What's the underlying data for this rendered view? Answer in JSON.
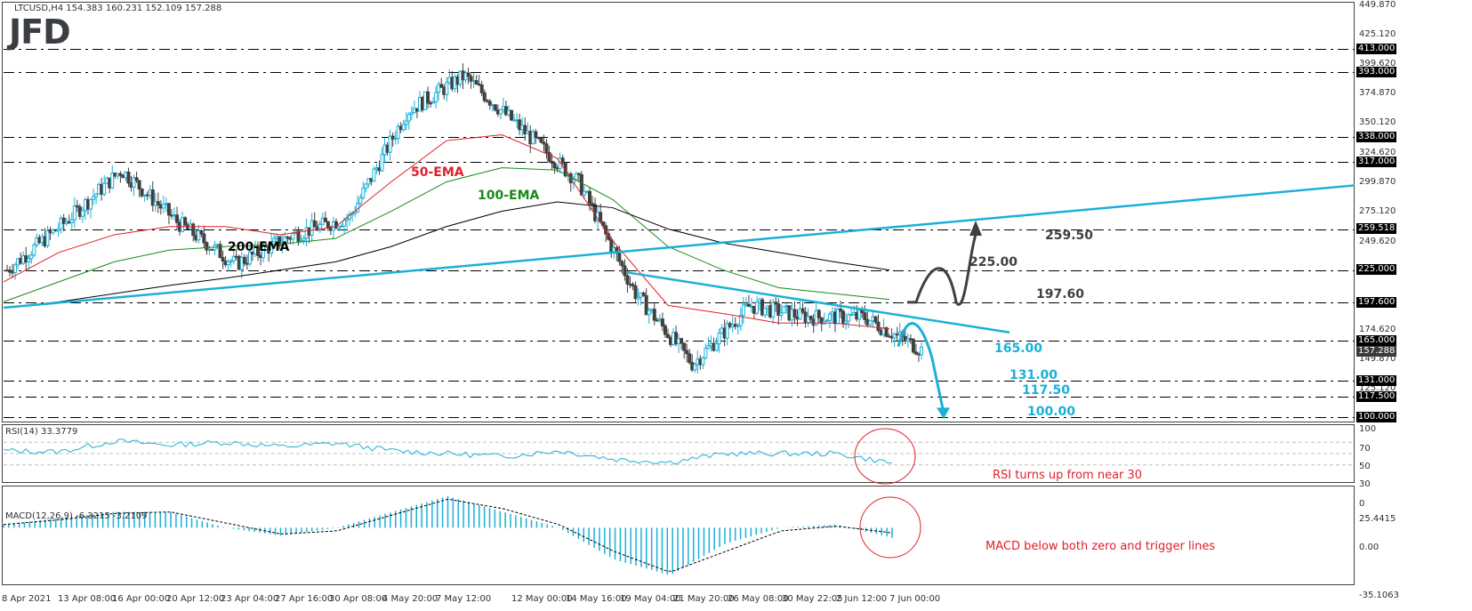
{
  "header": {
    "symbol_info": "LTCUSD,H4  154.383 160.231 152.109 157.288",
    "logo": "JFD"
  },
  "colors": {
    "bull": "#1ab0d8",
    "bear": "#404040",
    "ema50": "#e0202a",
    "ema100": "#1a8a1a",
    "ema200": "#000000",
    "trendline": "#1ab0d8",
    "bullish_path": "#404040",
    "bearish_path": "#1ab0d8",
    "note": "#e0202a"
  },
  "price_axis": {
    "ticks": [
      "449.870",
      "425.120",
      "399.620",
      "374.870",
      "350.120",
      "324.620",
      "299.870",
      "275.120",
      "249.620",
      "174.620",
      "149.870",
      "125.120"
    ],
    "level_tags": [
      "413.000",
      "393.000",
      "338.000",
      "317.000",
      "259.518",
      "225.000",
      "197.600",
      "165.000",
      "131.000",
      "117.500",
      "100.000"
    ],
    "current_price": "157.288"
  },
  "rsi": {
    "label": "RSI(14) 33.3779",
    "ticks": [
      "100",
      "70",
      "50",
      "30",
      "0"
    ],
    "note": "RSI turns up from near 30"
  },
  "macd": {
    "label": "MACD(12,26,9) -6.3215 -3.2109",
    "ticks": [
      "25.4415",
      "0.00",
      "-35.1063"
    ],
    "note": "MACD below both zero and trigger lines"
  },
  "time_axis": [
    "8 Apr 2021",
    "13 Apr 08:00",
    "16 Apr 00:00",
    "20 Apr 12:00",
    "23 Apr 04:00",
    "27 Apr 16:00",
    "30 Apr 08:00",
    "4 May 20:00",
    "7 May 12:00",
    "12 May 00:00",
    "14 May 16:00",
    "19 May 04:00",
    "21 May 20:00",
    "26 May 08:00",
    "30 May 22:05",
    "2 Jun 12:00",
    "7 Jun 00:00"
  ],
  "annotations": {
    "ema50": "50-EMA",
    "ema100": "100-EMA",
    "ema200": "200-EMA",
    "bull_225": "225.00",
    "bull_259": "259.50",
    "bull_197": "197.60",
    "bear_165": "165.00",
    "bear_131": "131.00",
    "bear_117": "117.50",
    "bear_100": "100.00"
  },
  "chart_data": [
    {
      "type": "candlestick",
      "title": "LTCUSD,H4",
      "ohlc_last": {
        "open": 154.383,
        "high": 160.231,
        "low": 152.109,
        "close": 157.288
      },
      "x": [
        "8 Apr 2021",
        "13 Apr 08:00",
        "16 Apr 00:00",
        "20 Apr 12:00",
        "23 Apr 04:00",
        "27 Apr 16:00",
        "30 Apr 08:00",
        "4 May 20:00",
        "7 May 12:00",
        "12 May 00:00",
        "14 May 16:00",
        "19 May 04:00",
        "21 May 20:00",
        "26 May 08:00",
        "30 May 22:05",
        "2 Jun 12:00",
        "7 Jun 00:00"
      ],
      "approx_close": [
        225,
        265,
        310,
        265,
        230,
        255,
        270,
        360,
        390,
        345,
        300,
        205,
        145,
        195,
        185,
        185,
        157.288
      ],
      "ylim": [
        100,
        449.87
      ],
      "horizontal_levels": [
        413,
        393,
        338,
        317,
        259.518,
        225,
        197.6,
        165,
        131,
        117.5,
        100
      ],
      "series": [
        {
          "name": "50-EMA",
          "approx_values": [
            215,
            240,
            255,
            262,
            262,
            255,
            262,
            300,
            335,
            340,
            320,
            250,
            195,
            188,
            180,
            180,
            175
          ]
        },
        {
          "name": "100-EMA",
          "approx_values": [
            198,
            215,
            232,
            242,
            245,
            247,
            252,
            275,
            300,
            312,
            310,
            285,
            245,
            225,
            210,
            205,
            200
          ]
        },
        {
          "name": "200-EMA",
          "approx_values": [
            193,
            198,
            205,
            212,
            218,
            225,
            232,
            245,
            262,
            275,
            283,
            278,
            260,
            248,
            240,
            232,
            225
          ]
        }
      ],
      "trendlines": [
        {
          "name": "rising support",
          "from": {
            "x": "8 Apr 2021",
            "y": 193
          },
          "to": {
            "x": "right edge",
            "y": 297
          }
        },
        {
          "name": "falling resistance",
          "from": {
            "x": "19 May 04:00",
            "y": 223
          },
          "to": {
            "x": "after 7 Jun",
            "y": 170
          }
        }
      ],
      "annotations": [
        "50-EMA",
        "100-EMA",
        "200-EMA",
        "225.00",
        "259.50",
        "197.60",
        "165.00",
        "131.00",
        "117.50",
        "100.00"
      ]
    },
    {
      "type": "line",
      "title": "RSI(14) 33.3779",
      "ylim": [
        0,
        100
      ],
      "levels": [
        30,
        50,
        70
      ],
      "approx_values": [
        55,
        53,
        72,
        65,
        70,
        62,
        68,
        55,
        50,
        45,
        55,
        40,
        35,
        50,
        50,
        50,
        33.38
      ],
      "annotations": [
        "RSI turns up from near 30"
      ]
    },
    {
      "type": "bar",
      "title": "MACD(12,26,9) -6.3215 -3.2109",
      "ylim": [
        -35.1063,
        25.4415
      ],
      "series": [
        {
          "name": "MACD histogram",
          "approx_values": [
            2,
            6,
            10,
            10,
            0,
            -5,
            0,
            10,
            20,
            10,
            0,
            -20,
            -30,
            -10,
            0,
            2,
            -6.3215
          ]
        },
        {
          "name": "Signal",
          "approx_values": [
            2,
            5,
            9,
            10,
            3,
            -4,
            -2,
            8,
            18,
            12,
            2,
            -15,
            -28,
            -15,
            -2,
            1,
            -3.2109
          ]
        }
      ],
      "annotations": [
        "MACD below both zero and trigger lines"
      ]
    }
  ]
}
